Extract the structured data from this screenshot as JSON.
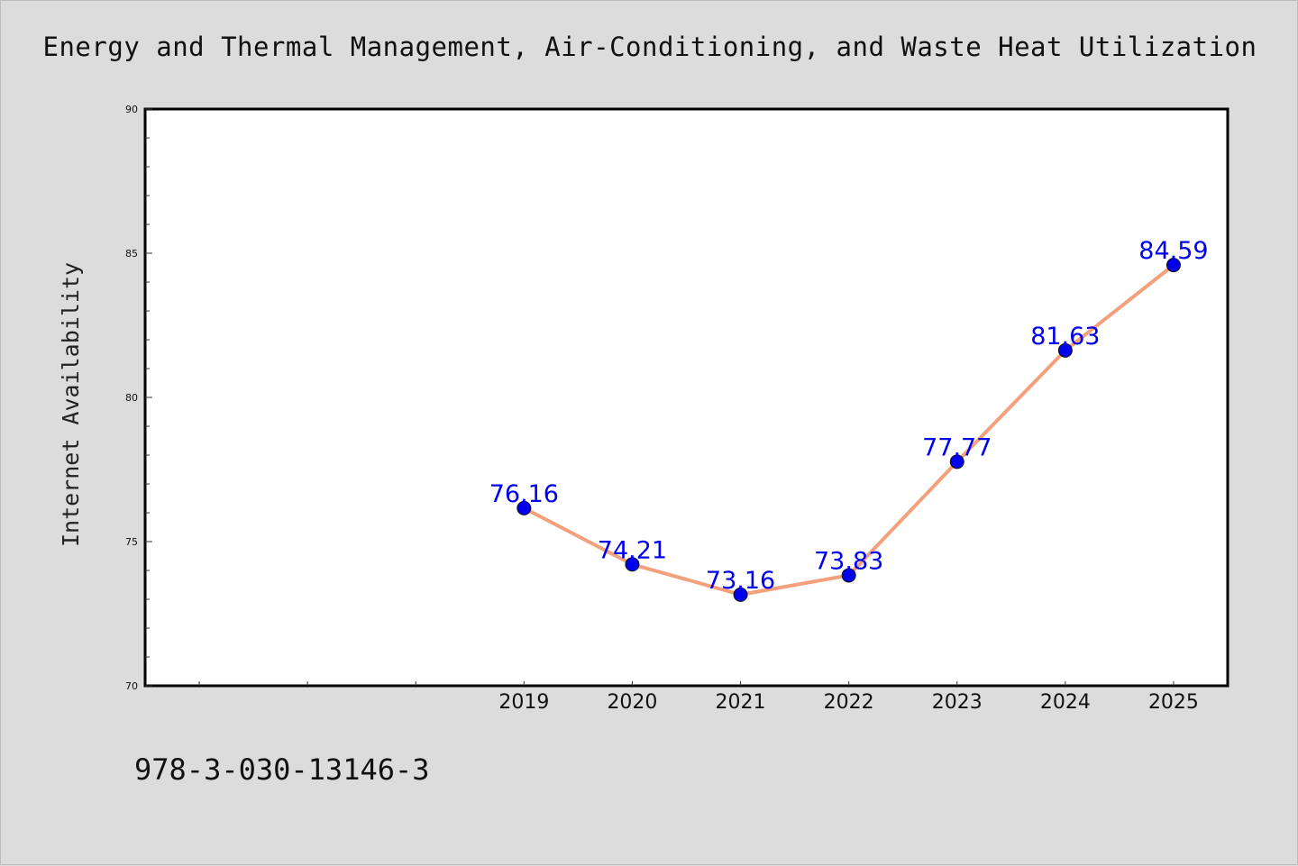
{
  "title": "Energy and Thermal Management, Air-Conditioning, and Waste Heat Utilization",
  "footer_text": "978-3-030-13146-3",
  "colors": {
    "background": "#dcdcdc",
    "plot_background": "#ffffff",
    "line": "#f4a07c",
    "marker": "#0000ee",
    "label": "#0000ee"
  },
  "chart_data": {
    "type": "line",
    "title": "Energy and Thermal Management, Air-Conditioning, and Waste Heat Utilization",
    "xlabel": "",
    "ylabel": "Internet Availability",
    "x": [
      "2019",
      "2020",
      "2021",
      "2022",
      "2023",
      "2024",
      "2025"
    ],
    "series": [
      {
        "values": [
          76.16,
          74.21,
          73.16,
          73.83,
          77.77,
          81.63,
          84.59
        ]
      }
    ],
    "data_labels": [
      "76.16",
      "74.21",
      "73.16",
      "73.83",
      "77.77",
      "81.63",
      "84.59"
    ],
    "ylim": [
      70,
      90
    ],
    "y_ticks": [
      70,
      75,
      80,
      85,
      90
    ],
    "x_range": [
      2015.5,
      2025.5
    ],
    "grid": false,
    "legend": "none"
  }
}
